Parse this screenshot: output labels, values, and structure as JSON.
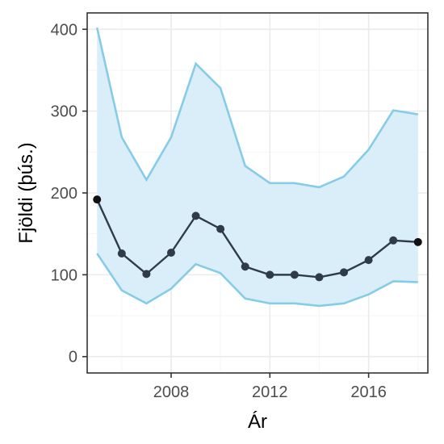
{
  "chart_data": {
    "type": "line",
    "xlabel": "Ár",
    "ylabel": "Fjöldi (þús.)",
    "xlim": [
      2004.6,
      2018.4
    ],
    "ylim": [
      -20,
      420
    ],
    "xticks": [
      2008,
      2012,
      2016
    ],
    "yticks": [
      0,
      100,
      200,
      300,
      400
    ],
    "x_minor_gridlines": [
      2006,
      2010,
      2014,
      2018
    ],
    "y_minor_gridlines": [
      50,
      150,
      250,
      350
    ],
    "grid": true,
    "x": [
      2005,
      2006,
      2007,
      2008,
      2009,
      2010,
      2011,
      2012,
      2013,
      2014,
      2015,
      2016,
      2017,
      2018
    ],
    "series": [
      {
        "role": "estimate",
        "values": [
          192,
          126,
          101,
          127,
          172,
          156,
          110,
          100,
          100,
          97,
          103,
          118,
          142,
          140
        ]
      },
      {
        "role": "upper",
        "values": [
          402,
          268,
          216,
          268,
          358,
          328,
          233,
          212,
          212,
          207,
          220,
          253,
          301,
          296
        ]
      },
      {
        "role": "lower",
        "values": [
          126,
          81,
          65,
          83,
          113,
          102,
          71,
          65,
          65,
          62,
          65,
          76,
          92,
          91
        ]
      }
    ],
    "colors": {
      "band_fill": "#d9eef8",
      "band_edge": "#87cce6",
      "line": "#2f3b47",
      "points": "#2f3b47",
      "grid_major": "#ebebeb",
      "grid_minor": "#f5f5f5",
      "panel_border": "#333333"
    }
  }
}
